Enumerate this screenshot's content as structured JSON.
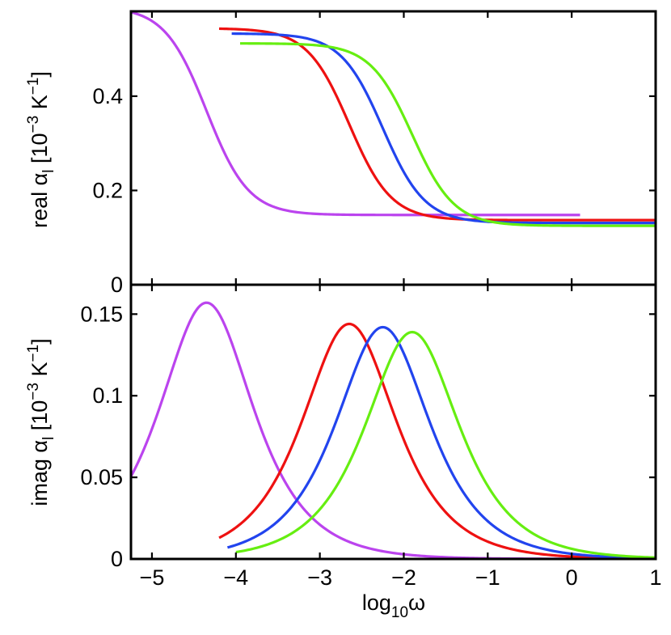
{
  "chart_data": [
    {
      "panel": "top",
      "type": "line",
      "ylabel": {
        "prefix": "real ",
        "symbol": "α",
        "symbol_sub": "l",
        "units_open": " [10",
        "units_exp": "−3",
        "units_mid": " K",
        "units_exp2": "−1",
        "units_close": "]"
      },
      "xlim": [
        -5.25,
        1
      ],
      "ylim": [
        0,
        0.58
      ],
      "yticks": [
        0,
        0.2,
        0.4
      ],
      "ytick_labels": [
        "0",
        "0.2",
        "0.4"
      ],
      "grid": false,
      "series": [
        {
          "name": "violet",
          "color": "#bb44ee",
          "x0": -5.25,
          "x1": 0.1,
          "kind": "real",
          "a": 0.148,
          "b": 0.442,
          "center": -4.35,
          "width": 0.5
        },
        {
          "name": "red",
          "color": "#ee1111",
          "x0": -4.2,
          "x1": 1.0,
          "kind": "real",
          "a": 0.137,
          "b": 0.407,
          "center": -2.65,
          "width": 0.5
        },
        {
          "name": "blue",
          "color": "#2244ee",
          "x0": -4.05,
          "x1": 1.0,
          "kind": "real",
          "a": 0.131,
          "b": 0.402,
          "center": -2.25,
          "width": 0.5
        },
        {
          "name": "green",
          "color": "#66ee11",
          "x0": -3.95,
          "x1": 1.0,
          "kind": "real",
          "a": 0.125,
          "b": 0.387,
          "center": -1.9,
          "width": 0.5
        }
      ]
    },
    {
      "panel": "bottom",
      "type": "line",
      "xlabel": {
        "prefix": "log",
        "sub": "10",
        "suffix": "ω"
      },
      "ylabel": {
        "prefix": "imag ",
        "symbol": "α",
        "symbol_sub": "l",
        "units_open": " [10",
        "units_exp": "−3",
        "units_mid": " K",
        "units_exp2": "−1",
        "units_close": "]"
      },
      "xlim": [
        -5.25,
        1
      ],
      "ylim": [
        0,
        0.168
      ],
      "xticks": [
        -5,
        -4,
        -3,
        -2,
        -1,
        0,
        1
      ],
      "xtick_labels": [
        "−5",
        "−4",
        "−3",
        "−2",
        "−1",
        "0",
        "1"
      ],
      "yticks": [
        0,
        0.05,
        0.1,
        0.15
      ],
      "ytick_labels": [
        "0",
        "0.05",
        "0.1",
        "0.15"
      ],
      "grid": false,
      "series": [
        {
          "name": "violet",
          "color": "#bb44ee",
          "x0": -5.25,
          "x1": 0.1,
          "kind": "imag",
          "peak": 0.157,
          "center": -4.35,
          "width": 0.5
        },
        {
          "name": "red",
          "color": "#ee1111",
          "x0": -4.2,
          "x1": 1.0,
          "kind": "imag",
          "peak": 0.144,
          "center": -2.65,
          "width": 0.5
        },
        {
          "name": "blue",
          "color": "#2244ee",
          "x0": -4.1,
          "x1": 1.0,
          "kind": "imag",
          "peak": 0.142,
          "center": -2.25,
          "width": 0.5
        },
        {
          "name": "green",
          "color": "#66ee11",
          "x0": -4.0,
          "x1": 1.0,
          "kind": "imag",
          "peak": 0.139,
          "center": -1.9,
          "width": 0.5
        }
      ]
    }
  ]
}
